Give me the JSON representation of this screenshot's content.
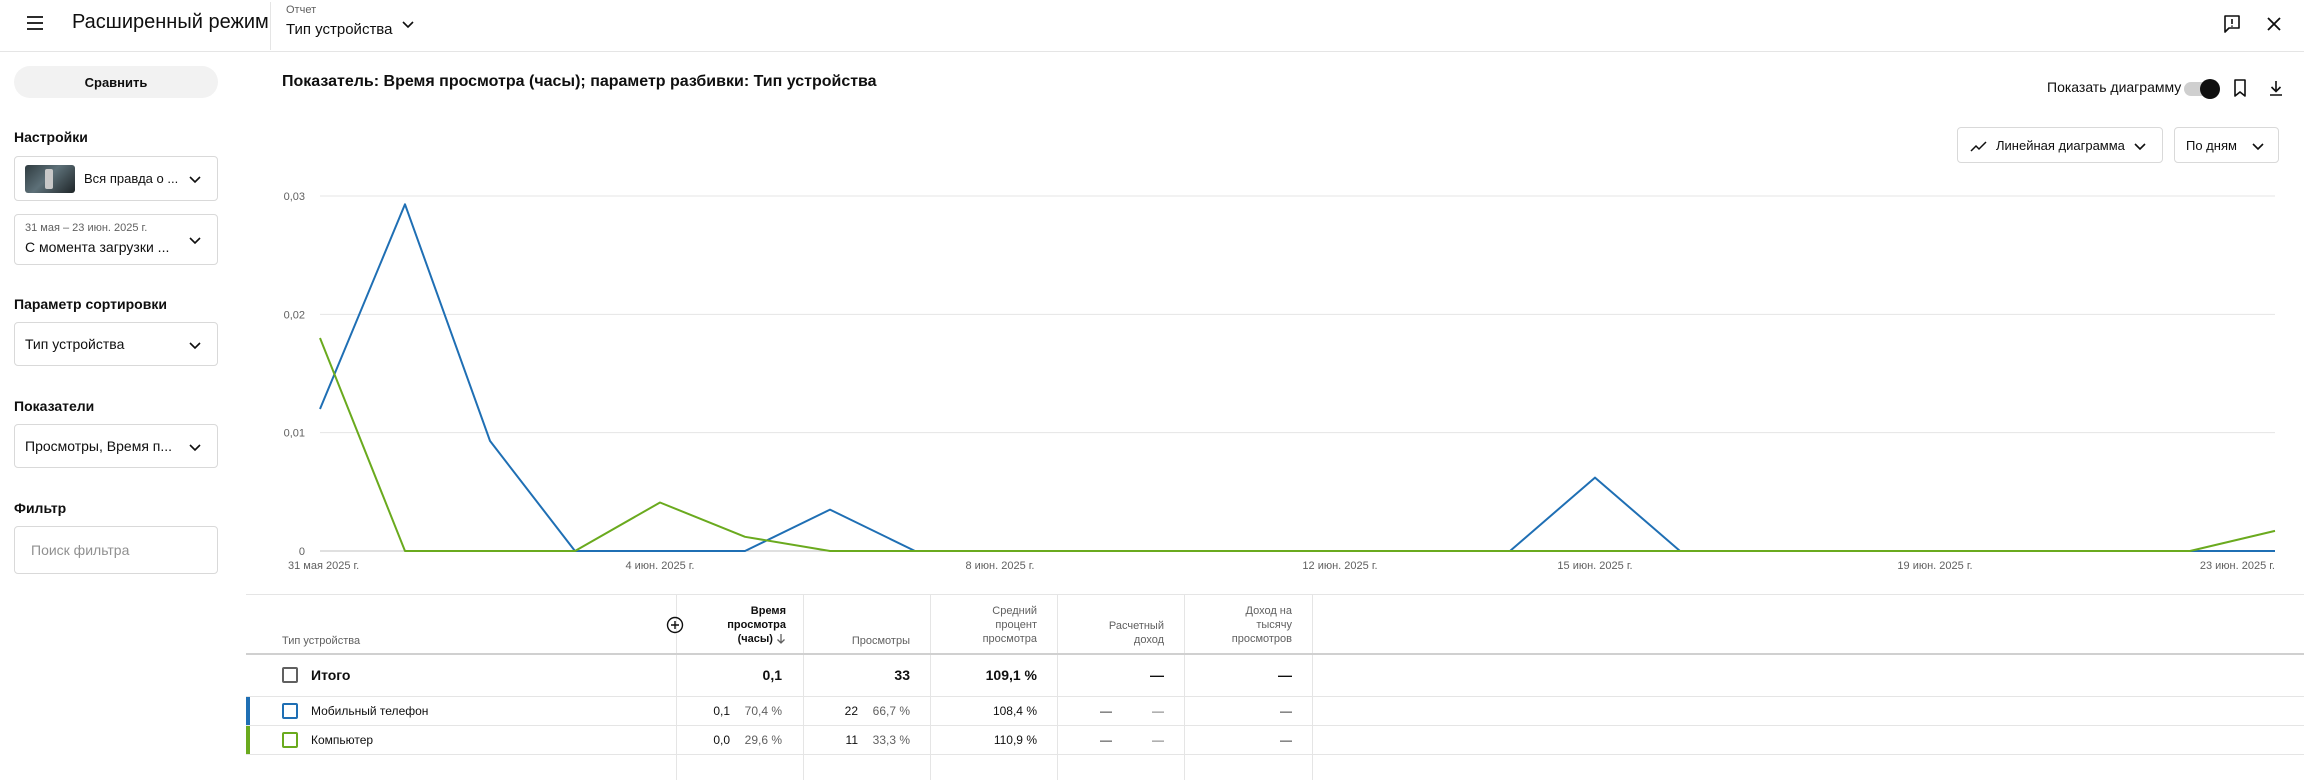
{
  "header": {
    "title": "Расширенный режим",
    "report_label": "Отчет",
    "report_value": "Тип устройства"
  },
  "sidebar": {
    "compare_label": "Сравнить",
    "settings_label": "Настройки",
    "video_value": "Вся правда о ...",
    "date_range": "31 мая – 23 июн. 2025 г.",
    "date_preset": "С момента загрузки ...",
    "sort_label": "Параметр сортировки",
    "sort_value": "Тип устройства",
    "metrics_label": "Показатели",
    "metrics_value": "Просмотры, Время п...",
    "filter_label": "Фильтр",
    "filter_placeholder": "Поиск фильтра"
  },
  "main": {
    "title": "Показатель: Время просмотра (часы); параметр разбивки: Тип устройства",
    "show_chart_label": "Показать диаграмму",
    "show_chart_on": true,
    "chart_type_label": "Линейная диаграмма",
    "period_label": "По дням"
  },
  "chart_data": {
    "type": "line",
    "x": [
      "2025-05-31",
      "2025-06-01",
      "2025-06-02",
      "2025-06-03",
      "2025-06-04",
      "2025-06-05",
      "2025-06-06",
      "2025-06-07",
      "2025-06-08",
      "2025-06-09",
      "2025-06-10",
      "2025-06-11",
      "2025-06-12",
      "2025-06-13",
      "2025-06-14",
      "2025-06-15",
      "2025-06-16",
      "2025-06-17",
      "2025-06-18",
      "2025-06-19",
      "2025-06-20",
      "2025-06-21",
      "2025-06-22",
      "2025-06-23"
    ],
    "xtick_labels": [
      {
        "index": 0,
        "label": "31 мая 2025 г."
      },
      {
        "index": 4,
        "label": "4 июн. 2025 г."
      },
      {
        "index": 8,
        "label": "8 июн. 2025 г."
      },
      {
        "index": 12,
        "label": "12 июн. 2025 г."
      },
      {
        "index": 15,
        "label": "15 июн. 2025 г."
      },
      {
        "index": 19,
        "label": "19 июн. 2025 г."
      },
      {
        "index": 23,
        "label": "23 июн. 2025 г."
      }
    ],
    "yticks": [
      {
        "value": 0,
        "label": "0"
      },
      {
        "value": 0.01,
        "label": "0,01"
      },
      {
        "value": 0.02,
        "label": "0,02"
      },
      {
        "value": 0.03,
        "label": "0,03"
      }
    ],
    "ylim": [
      0,
      0.03
    ],
    "grid": true,
    "series": [
      {
        "name": "Мобильный телефон",
        "color": "#1f6fb4",
        "values": [
          0.012,
          0.0293,
          0.0093,
          0,
          0,
          0,
          0.0035,
          0,
          0,
          0,
          0,
          0,
          0,
          0,
          0,
          0.0062,
          0,
          0,
          0,
          0,
          0,
          0,
          0,
          0
        ]
      },
      {
        "name": "Компьютер",
        "color": "#6aaa1e",
        "values": [
          0.018,
          0,
          0,
          0,
          0.0041,
          0.0012,
          0,
          0,
          0,
          0,
          0,
          0,
          0,
          0,
          0,
          0,
          0,
          0,
          0,
          0,
          0,
          0,
          0,
          0.0017
        ]
      }
    ]
  },
  "table": {
    "col_device": "Тип устройства",
    "col_watch_time": [
      "Время",
      "просмотра",
      "(часы)"
    ],
    "col_views": "Просмотры",
    "col_avg_pct": [
      "Средний",
      "процент",
      "просмотра"
    ],
    "col_revenue": [
      "Расчетный",
      "доход"
    ],
    "col_rpm": [
      "Доход на",
      "тысячу",
      "просмотров"
    ],
    "total": {
      "label": "Итого",
      "watch_time": "0,1",
      "views": "33",
      "avg_pct": "109,1 %",
      "revenue": "—",
      "rpm": "—"
    },
    "rows": [
      {
        "label": "Мобильный телефон",
        "color": "#1f6fb4",
        "watch_time": "0,1",
        "watch_pct": "70,4 %",
        "views": "22",
        "views_pct": "66,7 %",
        "avg_pct": "108,4 %",
        "revenue": "—",
        "revenue_pct": "—",
        "rpm": "—"
      },
      {
        "label": "Компьютер",
        "color": "#6aaa1e",
        "watch_time": "0,0",
        "watch_pct": "29,6 %",
        "views": "11",
        "views_pct": "33,3 %",
        "avg_pct": "110,9 %",
        "revenue": "—",
        "revenue_pct": "—",
        "rpm": "—"
      }
    ]
  }
}
